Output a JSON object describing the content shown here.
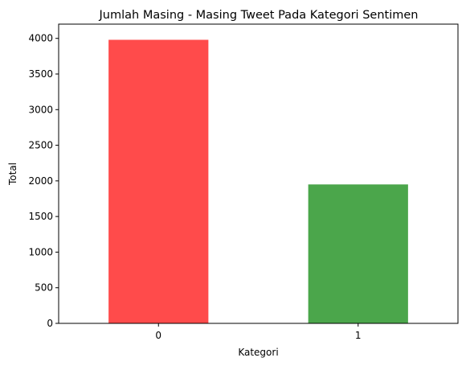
{
  "chart_data": {
    "type": "bar",
    "title": "Jumlah Masing - Masing Tweet Pada Kategori Sentimen",
    "xlabel": "Kategori",
    "ylabel": "Total",
    "categories": [
      "0",
      "1"
    ],
    "values": [
      3980,
      1950
    ],
    "bar_colors": [
      "#ff4b4b",
      "#4ba64b"
    ],
    "ylim": [
      0,
      4200
    ],
    "yticks": [
      0,
      500,
      1000,
      1500,
      2000,
      2500,
      3000,
      3500,
      4000
    ],
    "grid": false,
    "legend": "none"
  }
}
